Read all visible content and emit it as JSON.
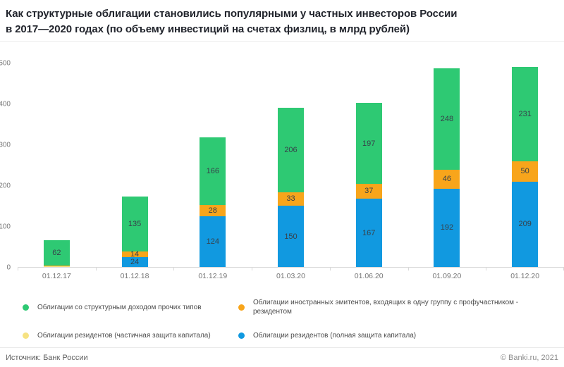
{
  "header": {
    "title_line1": "Как структурные облигации становились популярными у частных инвесторов России",
    "title_line2": "в 2017—2020 годах (по объему инвестиций на счетах физлиц, в млрд рублей)"
  },
  "colors": {
    "green": "#2ec973",
    "orange": "#f8a51b",
    "yellow": "#f6e282",
    "blue": "#1199e0",
    "axis_line": "#d9d9d9",
    "axis_text": "#767676",
    "bar_label": "#37414a"
  },
  "chart_data": {
    "type": "bar",
    "stacked": true,
    "title": "Как структурные облигации становились популярными у частных инвесторов России в 2017—2020 годах (по объему инвестиций на счетах физлиц, в млрд рублей)",
    "categories": [
      "01.12.17",
      "01.12.18",
      "01.12.19",
      "01.03.20",
      "01.06.20",
      "01.09.20",
      "01.12.20"
    ],
    "series": [
      {
        "name": "Облигации резидентов (полная защита капитала)",
        "color_key": "blue",
        "values": [
          0,
          24,
          124,
          150,
          167,
          192,
          209
        ]
      },
      {
        "name": "Облигации резидентов (частичная защита капитала)",
        "color_key": "yellow",
        "values": [
          1,
          0,
          0,
          0,
          0,
          0,
          0
        ]
      },
      {
        "name": "Облигации иностранных эмитентов, входящих в одну группу с профучастником - резидентом",
        "color_key": "orange",
        "values": [
          3,
          14,
          28,
          33,
          37,
          46,
          50
        ]
      },
      {
        "name": "Облигации со структурным доходом прочих типов",
        "color_key": "green",
        "values": [
          62,
          135,
          166,
          206,
          197,
          248,
          231
        ]
      }
    ],
    "totals": [
      66,
      173,
      318,
      389,
      401,
      486,
      490
    ],
    "ylim": [
      0,
      500
    ],
    "y_ticks": [
      0,
      100,
      200,
      300,
      400,
      500
    ],
    "grid": false,
    "legend_position": "bottom",
    "label_min_value": 10,
    "ylabel": "млрд рублей",
    "xlabel": ""
  },
  "legend": {
    "items": [
      {
        "color_key": "green",
        "label": "Облигации со структурным доходом прочих типов"
      },
      {
        "color_key": "orange",
        "label": "Облигации иностранных эмитентов, входящих в одну группу с профучастником -  резидентом"
      },
      {
        "color_key": "yellow",
        "label": "Облигации резидентов (частичная защита капитала)"
      },
      {
        "color_key": "blue",
        "label": "Облигации резидентов (полная защита капитала)"
      }
    ]
  },
  "footer": {
    "source": "Источник: Банк России",
    "copyright": "© Banki.ru, 2021"
  }
}
